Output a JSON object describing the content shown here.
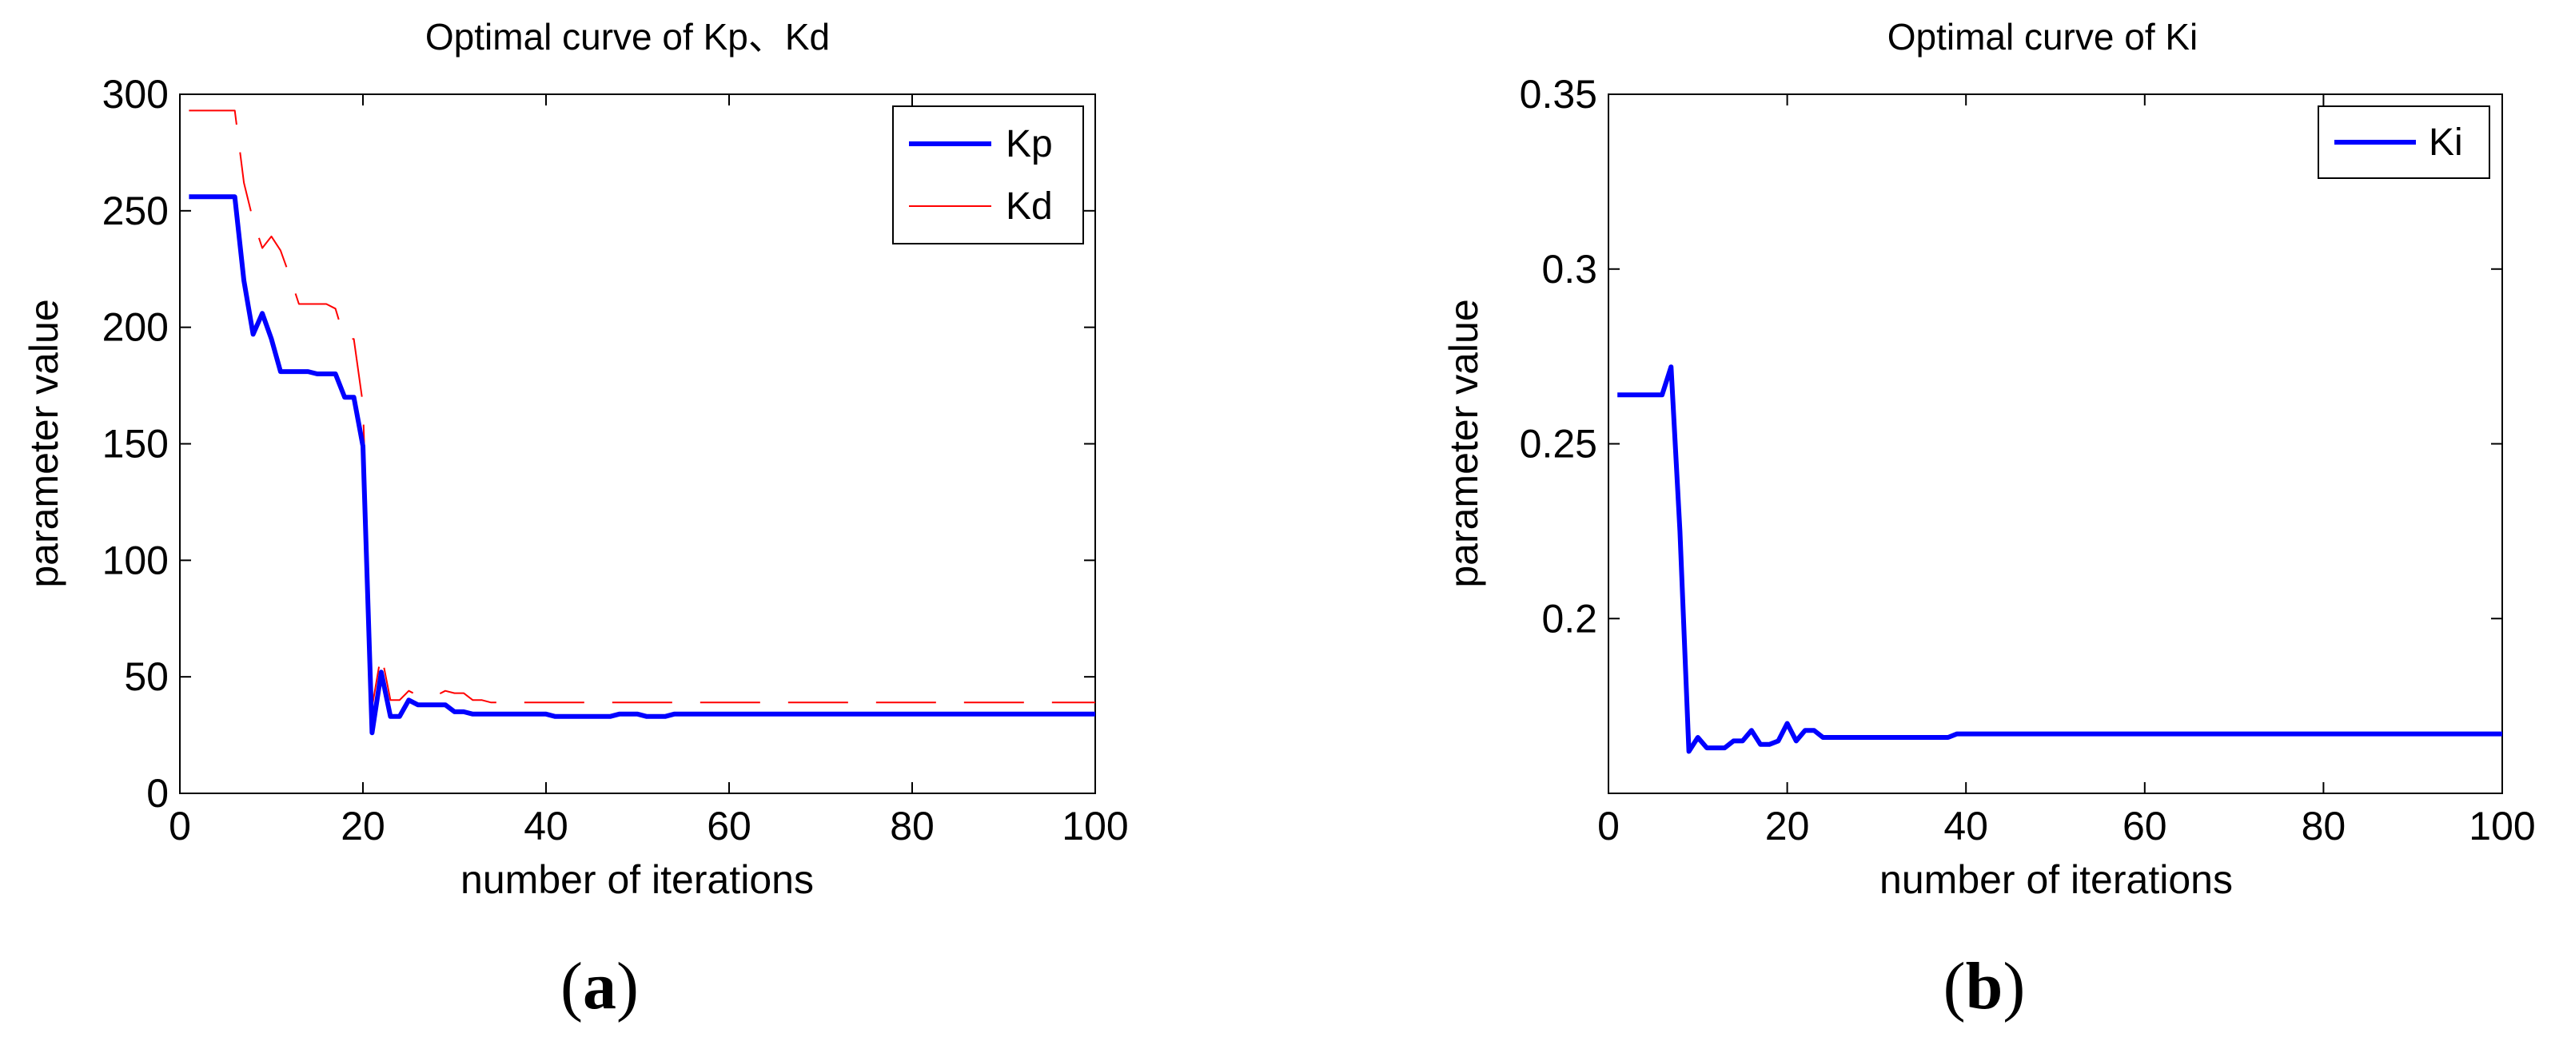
{
  "panels": [
    {
      "caption_open": "(",
      "caption_letter": "a",
      "caption_close": ")"
    },
    {
      "caption_open": "(",
      "caption_letter": "b",
      "caption_close": ")"
    }
  ],
  "chart_data": [
    {
      "type": "line",
      "title": "Optimal curve of Kp、Kd",
      "xlabel": "number of iterations",
      "ylabel": "parameter value",
      "xlim": [
        0,
        100
      ],
      "ylim": [
        0,
        300
      ],
      "xticks": [
        "0",
        "20",
        "40",
        "60",
        "80",
        "100"
      ],
      "yticks": [
        "0",
        "50",
        "100",
        "150",
        "200",
        "250",
        "300"
      ],
      "legend_position": "top-right",
      "series": [
        {
          "name": "Kp",
          "color": "#0000ff",
          "style": "solid",
          "x": [
            1,
            2,
            3,
            4,
            5,
            6,
            7,
            8,
            9,
            10,
            11,
            12,
            13,
            14,
            15,
            16,
            17,
            18,
            19,
            20,
            21,
            22,
            23,
            24,
            25,
            26,
            27,
            28,
            29,
            30,
            31,
            32,
            33,
            34,
            35,
            36,
            37,
            38,
            39,
            40,
            41,
            42,
            43,
            44,
            45,
            46,
            47,
            48,
            49,
            50,
            51,
            52,
            53,
            54,
            55,
            56,
            57,
            58,
            59,
            60,
            61,
            62,
            63,
            64,
            65,
            66,
            67,
            68,
            69,
            70,
            71,
            72,
            73,
            74,
            75,
            76,
            77,
            78,
            79,
            80,
            81,
            82,
            83,
            84,
            85,
            86,
            87,
            88,
            89,
            90,
            91,
            92,
            93,
            94,
            95,
            96,
            97,
            98,
            99,
            100
          ],
          "values": [
            256,
            256,
            256,
            256,
            256,
            256,
            220,
            197,
            206,
            195,
            181,
            181,
            181,
            181,
            180,
            180,
            180,
            170,
            170,
            149,
            26,
            52,
            33,
            33,
            40,
            38,
            38,
            38,
            38,
            35,
            35,
            34,
            34,
            34,
            34,
            34,
            34,
            34,
            34,
            34,
            33,
            33,
            33,
            33,
            33,
            33,
            33,
            34,
            34,
            34,
            33,
            33,
            33,
            34,
            34,
            34,
            34,
            34,
            34,
            34,
            34,
            34,
            34,
            34,
            34,
            34,
            34,
            34,
            34,
            34,
            34,
            34,
            34,
            34,
            34,
            34,
            34,
            34,
            34,
            34,
            34,
            34,
            34,
            34,
            34,
            34,
            34,
            34,
            34,
            34,
            34,
            34,
            34,
            34,
            34,
            34,
            34,
            34,
            34,
            34
          ]
        },
        {
          "name": "Kd",
          "color": "#ff0000",
          "style": "dashed",
          "x": [
            1,
            2,
            3,
            4,
            5,
            6,
            7,
            8,
            9,
            10,
            11,
            12,
            13,
            14,
            15,
            16,
            17,
            18,
            19,
            20,
            21,
            22,
            23,
            24,
            25,
            26,
            27,
            28,
            29,
            30,
            31,
            32,
            33,
            34,
            35,
            36,
            37,
            38,
            39,
            40,
            41,
            42,
            43,
            44,
            45,
            46,
            47,
            48,
            49,
            50,
            51,
            52,
            53,
            54,
            55,
            56,
            57,
            58,
            59,
            60,
            61,
            62,
            63,
            64,
            65,
            66,
            67,
            68,
            69,
            70,
            71,
            72,
            73,
            74,
            75,
            76,
            77,
            78,
            79,
            80,
            81,
            82,
            83,
            84,
            85,
            86,
            87,
            88,
            89,
            90,
            91,
            92,
            93,
            94,
            95,
            96,
            97,
            98,
            99,
            100
          ],
          "values": [
            293,
            293,
            293,
            293,
            293,
            293,
            262,
            246,
            234,
            239,
            233,
            222,
            210,
            210,
            210,
            210,
            208,
            195,
            195,
            167,
            37,
            60,
            40,
            40,
            44,
            42,
            42,
            42,
            44,
            43,
            43,
            40,
            40,
            39,
            39,
            39,
            39,
            39,
            39,
            39,
            39,
            39,
            39,
            39,
            39,
            39,
            39,
            39,
            39,
            39,
            39,
            39,
            39,
            39,
            39,
            39,
            39,
            39,
            39,
            39,
            39,
            39,
            39,
            39,
            39,
            39,
            39,
            39,
            39,
            39,
            39,
            39,
            39,
            39,
            39,
            39,
            39,
            39,
            39,
            39,
            39,
            39,
            39,
            39,
            39,
            39,
            39,
            39,
            39,
            39,
            39,
            39,
            39,
            39,
            39,
            39,
            39,
            39,
            39,
            39
          ]
        }
      ]
    },
    {
      "type": "line",
      "title": "Optimal curve of Ki",
      "xlabel": "number of iterations",
      "ylabel": "parameter value",
      "xlim": [
        0,
        100
      ],
      "ylim": [
        0.15,
        0.35
      ],
      "xticks": [
        "0",
        "20",
        "40",
        "60",
        "80",
        "100"
      ],
      "yticks": [
        "0.2",
        "0.25",
        "0.3",
        "0.35"
      ],
      "legend_position": "top-right",
      "series": [
        {
          "name": "Ki",
          "color": "#0000ff",
          "style": "solid",
          "x": [
            1,
            2,
            3,
            4,
            5,
            6,
            7,
            8,
            9,
            10,
            11,
            12,
            13,
            14,
            15,
            16,
            17,
            18,
            19,
            20,
            21,
            22,
            23,
            24,
            25,
            26,
            27,
            28,
            29,
            30,
            31,
            32,
            33,
            34,
            35,
            36,
            37,
            38,
            39,
            40,
            41,
            42,
            43,
            44,
            45,
            46,
            47,
            48,
            49,
            50,
            51,
            52,
            53,
            54,
            55,
            56,
            57,
            58,
            59,
            60,
            61,
            62,
            63,
            64,
            65,
            66,
            67,
            68,
            69,
            70,
            71,
            72,
            73,
            74,
            75,
            76,
            77,
            78,
            79,
            80,
            81,
            82,
            83,
            84,
            85,
            86,
            87,
            88,
            89,
            90,
            91,
            92,
            93,
            94,
            95,
            96,
            97,
            98,
            99,
            100
          ],
          "values": [
            0.264,
            0.264,
            0.264,
            0.264,
            0.264,
            0.264,
            0.272,
            0.225,
            0.162,
            0.166,
            0.163,
            0.163,
            0.163,
            0.165,
            0.165,
            0.168,
            0.164,
            0.164,
            0.165,
            0.17,
            0.165,
            0.168,
            0.168,
            0.166,
            0.166,
            0.166,
            0.166,
            0.166,
            0.166,
            0.166,
            0.166,
            0.166,
            0.166,
            0.166,
            0.166,
            0.166,
            0.166,
            0.166,
            0.167,
            0.167,
            0.167,
            0.167,
            0.167,
            0.167,
            0.167,
            0.167,
            0.167,
            0.167,
            0.167,
            0.167,
            0.167,
            0.167,
            0.167,
            0.167,
            0.167,
            0.167,
            0.167,
            0.167,
            0.167,
            0.167,
            0.167,
            0.167,
            0.167,
            0.167,
            0.167,
            0.167,
            0.167,
            0.167,
            0.167,
            0.167,
            0.167,
            0.167,
            0.167,
            0.167,
            0.167,
            0.167,
            0.167,
            0.167,
            0.167,
            0.167,
            0.167,
            0.167,
            0.167,
            0.167,
            0.167,
            0.167,
            0.167,
            0.167,
            0.167,
            0.167,
            0.167,
            0.167,
            0.167,
            0.167,
            0.167,
            0.167,
            0.167,
            0.167,
            0.167,
            0.167
          ]
        }
      ]
    }
  ]
}
